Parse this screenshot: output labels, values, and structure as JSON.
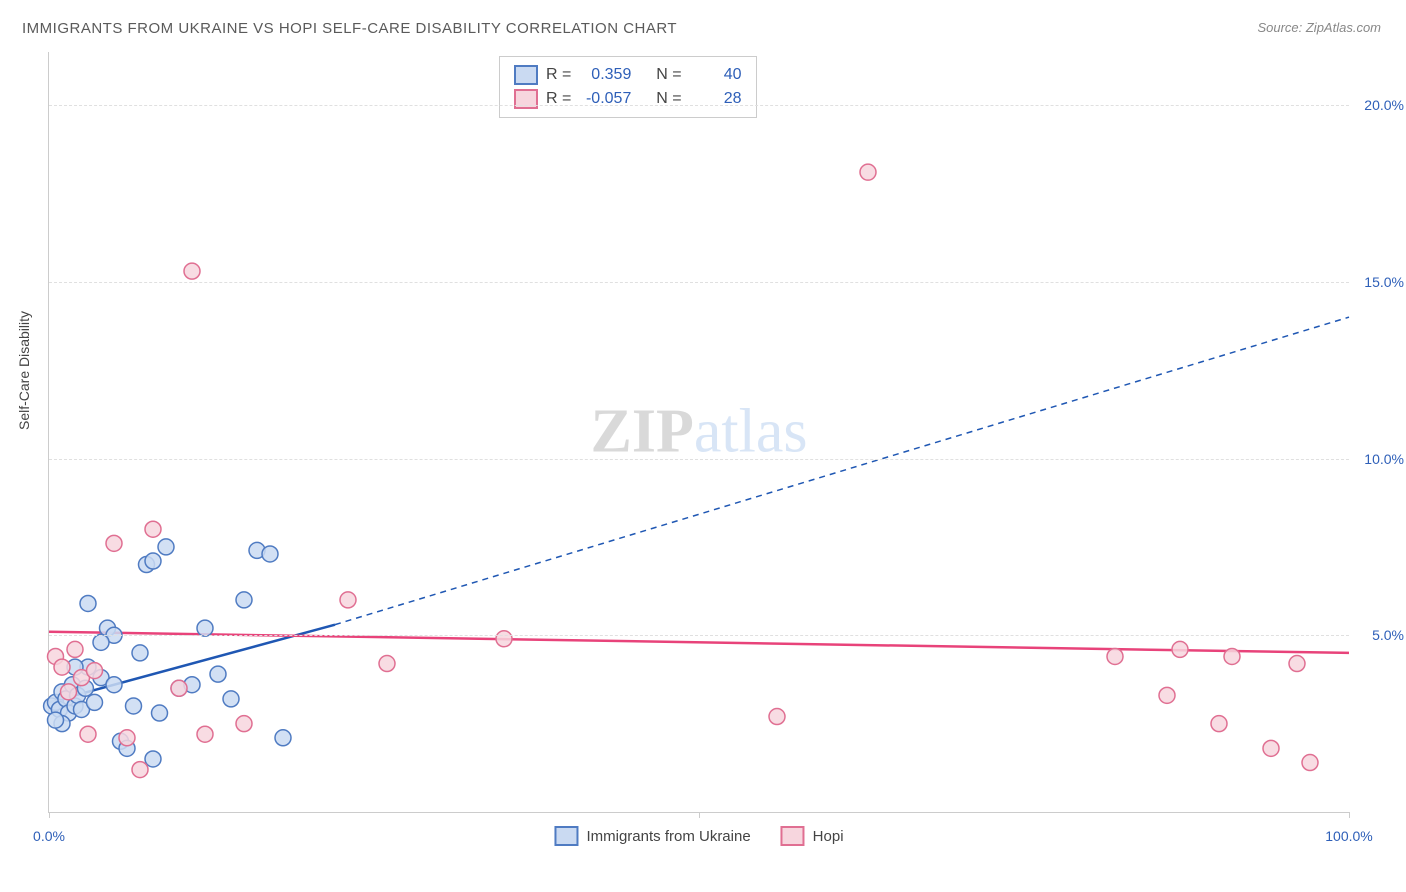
{
  "title": "IMMIGRANTS FROM UKRAINE VS HOPI SELF-CARE DISABILITY CORRELATION CHART",
  "source": "Source: ZipAtlas.com",
  "ylabel": "Self-Care Disability",
  "watermark_zip": "ZIP",
  "watermark_atlas": "atlas",
  "chart": {
    "type": "scatter",
    "xlim": [
      0,
      100
    ],
    "ylim": [
      0,
      21.5
    ],
    "x_ticks": [
      0,
      50,
      100
    ],
    "x_tick_labels": [
      "0.0%",
      "",
      "100.0%"
    ],
    "y_gridlines": [
      5,
      10,
      15,
      20
    ],
    "y_tick_labels": [
      "5.0%",
      "10.0%",
      "15.0%",
      "20.0%"
    ],
    "background_color": "#ffffff",
    "grid_color": "#e0e0e0",
    "marker_radius": 8,
    "series": [
      {
        "name": "Immigrants from Ukraine",
        "fill": "#cadaf2",
        "stroke": "#4f7bc2",
        "line_color": "#1f57b3",
        "R": "0.359",
        "N": "40",
        "points": [
          [
            0.2,
            3.0
          ],
          [
            0.5,
            3.1
          ],
          [
            0.8,
            2.9
          ],
          [
            1.0,
            3.4
          ],
          [
            1.3,
            3.2
          ],
          [
            1.5,
            2.8
          ],
          [
            1.8,
            3.6
          ],
          [
            2.0,
            3.0
          ],
          [
            2.2,
            3.3
          ],
          [
            2.5,
            2.9
          ],
          [
            2.8,
            3.5
          ],
          [
            3.0,
            5.9
          ],
          [
            3.0,
            4.1
          ],
          [
            3.5,
            3.1
          ],
          [
            4.0,
            3.8
          ],
          [
            4.5,
            5.2
          ],
          [
            5.0,
            3.6
          ],
          [
            5.0,
            5.0
          ],
          [
            5.5,
            2.0
          ],
          [
            6.0,
            1.8
          ],
          [
            6.5,
            3.0
          ],
          [
            7.0,
            4.5
          ],
          [
            7.5,
            7.0
          ],
          [
            8.0,
            7.1
          ],
          [
            8.0,
            1.5
          ],
          [
            9.0,
            7.5
          ],
          [
            10.0,
            3.5
          ],
          [
            11.0,
            3.6
          ],
          [
            12.0,
            5.2
          ],
          [
            13.0,
            3.9
          ],
          [
            14.0,
            3.2
          ],
          [
            15.0,
            6.0
          ],
          [
            16.0,
            7.4
          ],
          [
            17.0,
            7.3
          ],
          [
            18.0,
            2.1
          ],
          [
            8.5,
            2.8
          ],
          [
            4.0,
            4.8
          ],
          [
            2.0,
            4.1
          ],
          [
            1.0,
            2.5
          ],
          [
            0.5,
            2.6
          ]
        ],
        "trend_solid": [
          [
            0,
            3.1
          ],
          [
            22,
            5.3
          ]
        ],
        "trend_dashed": [
          [
            22,
            5.3
          ],
          [
            100,
            14.0
          ]
        ]
      },
      {
        "name": "Hopi",
        "fill": "#f7d6de",
        "stroke": "#e06f92",
        "line_color": "#e8437a",
        "R": "-0.057",
        "N": "28",
        "points": [
          [
            0.5,
            4.4
          ],
          [
            1.0,
            4.1
          ],
          [
            1.5,
            3.4
          ],
          [
            2.0,
            4.6
          ],
          [
            2.5,
            3.8
          ],
          [
            3.0,
            2.2
          ],
          [
            3.5,
            4.0
          ],
          [
            5.0,
            7.6
          ],
          [
            6.0,
            2.1
          ],
          [
            7.0,
            1.2
          ],
          [
            8.0,
            8.0
          ],
          [
            10.0,
            3.5
          ],
          [
            11.0,
            15.3
          ],
          [
            12.0,
            2.2
          ],
          [
            15.0,
            2.5
          ],
          [
            23.0,
            6.0
          ],
          [
            26.0,
            4.2
          ],
          [
            35.0,
            4.9
          ],
          [
            56.0,
            2.7
          ],
          [
            63.0,
            18.1
          ],
          [
            82.0,
            4.4
          ],
          [
            86.0,
            3.3
          ],
          [
            87.0,
            4.6
          ],
          [
            90.0,
            2.5
          ],
          [
            91.0,
            4.4
          ],
          [
            94.0,
            1.8
          ],
          [
            96.0,
            4.2
          ],
          [
            97.0,
            1.4
          ]
        ],
        "trend_solid": [
          [
            0,
            5.1
          ],
          [
            100,
            4.5
          ]
        ],
        "trend_dashed": null
      }
    ]
  },
  "legend_top": {
    "rlabel": "R =",
    "nlabel": "N ="
  },
  "legend_bottom": {
    "items": [
      "Immigrants from Ukraine",
      "Hopi"
    ]
  }
}
